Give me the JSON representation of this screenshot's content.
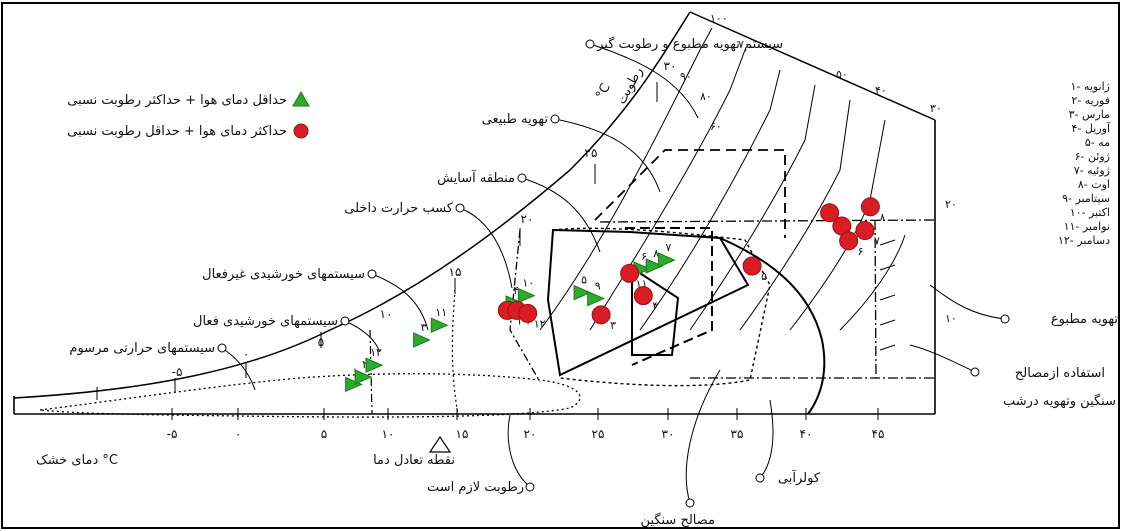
{
  "legend": {
    "min_label": "حداقل دمای هوا + حداکثر رطوبت نسبی",
    "max_label": "حداکثر دمای هوا + حداقل رطوبت نسبی",
    "min_color": "#2eaa2e",
    "max_color": "#d81e24"
  },
  "months": [
    "۱- ژانویه",
    "۲- فوریه",
    "۳- مارس",
    "۴- آوریل",
    "۵- مه",
    "۶- ژوئن",
    "۷- ژوئیه",
    "۸- اوت",
    "۹- سپتامبر",
    "۱۰- اکتبر",
    "۱۱- نوامبر",
    "۱۲- دسامبر"
  ],
  "labels": {
    "mech_vent": "سیستم تهویه مطبوع و رطوبت گیر",
    "natural_vent": "تهویه طبیعی",
    "comfort_zone": "منطقه آسایش",
    "internal_gain": "کسب حرارت داخلی",
    "passive_solar": "سیستمهای خورشیدی غیرفعال",
    "active_solar": "سیستمهای خورشیدی فعال",
    "conventional_heat": "سیستمهای حرارتی مرسوم",
    "air_conditioning": "تهویه مطبوع",
    "mass_use": "استفاده ازمصالح",
    "mass_use2": "سنگین وتهویه درشب",
    "evap": "کولرآبی",
    "heavy_mass": "مصالح سنگین",
    "humidity_needed": "رطوبت لازم است",
    "balance_point": "نقطه تعادل دما",
    "dry_bulb": "دمای خشک °C",
    "rh_axis": "رطوبت",
    "celsius": "°C"
  },
  "x_ticks": [
    "-۵",
    "۰",
    "۵",
    "۱۰",
    "۱۵",
    "۲۰",
    "۲۵",
    "۳۰",
    "۳۵",
    "۴۰",
    "۴۵"
  ],
  "wet_bulb_ticks": [
    "-۵",
    "۰",
    "۵",
    "۱۰",
    "۱۵",
    "۲۰",
    "۲۵",
    "۳۰"
  ],
  "rh_ticks": [
    "۱۰۰",
    "۹۰",
    "۸۰",
    "۷۰",
    "۶۰",
    "۵۰",
    "۴۰",
    "۳۰",
    "۲۰",
    "۱۰"
  ],
  "min_markers": [
    {
      "label": "۱",
      "t": 8.5,
      "y": 0.2
    },
    {
      "label": "۲",
      "t": 9.2,
      "y": 0.25
    },
    {
      "label": "۱۲",
      "t": 10,
      "y": 0.33
    },
    {
      "label": "۳",
      "t": 13.5,
      "y": 0.5
    },
    {
      "label": "۱۱",
      "t": 14.8,
      "y": 0.6
    },
    {
      "label": "۴",
      "t": 20.3,
      "y": 0.75
    },
    {
      "label": "۱۰",
      "t": 21.2,
      "y": 0.8
    },
    {
      "label": "۵",
      "t": 25.3,
      "y": 0.82
    },
    {
      "label": "۹",
      "t": 26.3,
      "y": 0.78
    },
    {
      "label": "۶",
      "t": 29.7,
      "y": 0.98
    },
    {
      "label": "۸",
      "t": 30.6,
      "y": 1.0
    },
    {
      "label": "۷",
      "t": 31.5,
      "y": 1.04
    }
  ],
  "max_markers": [
    {
      "label": "۱",
      "t": 19.8,
      "y": 0.7
    },
    {
      "label": "۲",
      "t": 20.5,
      "y": 0.7
    },
    {
      "label": "۱۲",
      "t": 21.3,
      "y": 0.68
    },
    {
      "label": "۳",
      "t": 26.7,
      "y": 0.67
    },
    {
      "label": "۱۱",
      "t": 28.8,
      "y": 0.95
    },
    {
      "label": "۴",
      "t": 29.8,
      "y": 0.8
    },
    {
      "label": "۵",
      "t": 37.8,
      "y": 1.0
    },
    {
      "label": "۹",
      "t": 43.5,
      "y": 1.36
    },
    {
      "label": "۱۰",
      "t": 44.4,
      "y": 1.27
    },
    {
      "label": "۶",
      "t": 44.9,
      "y": 1.17
    },
    {
      "label": "۷",
      "t": 46.1,
      "y": 1.24
    },
    {
      "label": "۸",
      "t": 46.5,
      "y": 1.4
    }
  ]
}
